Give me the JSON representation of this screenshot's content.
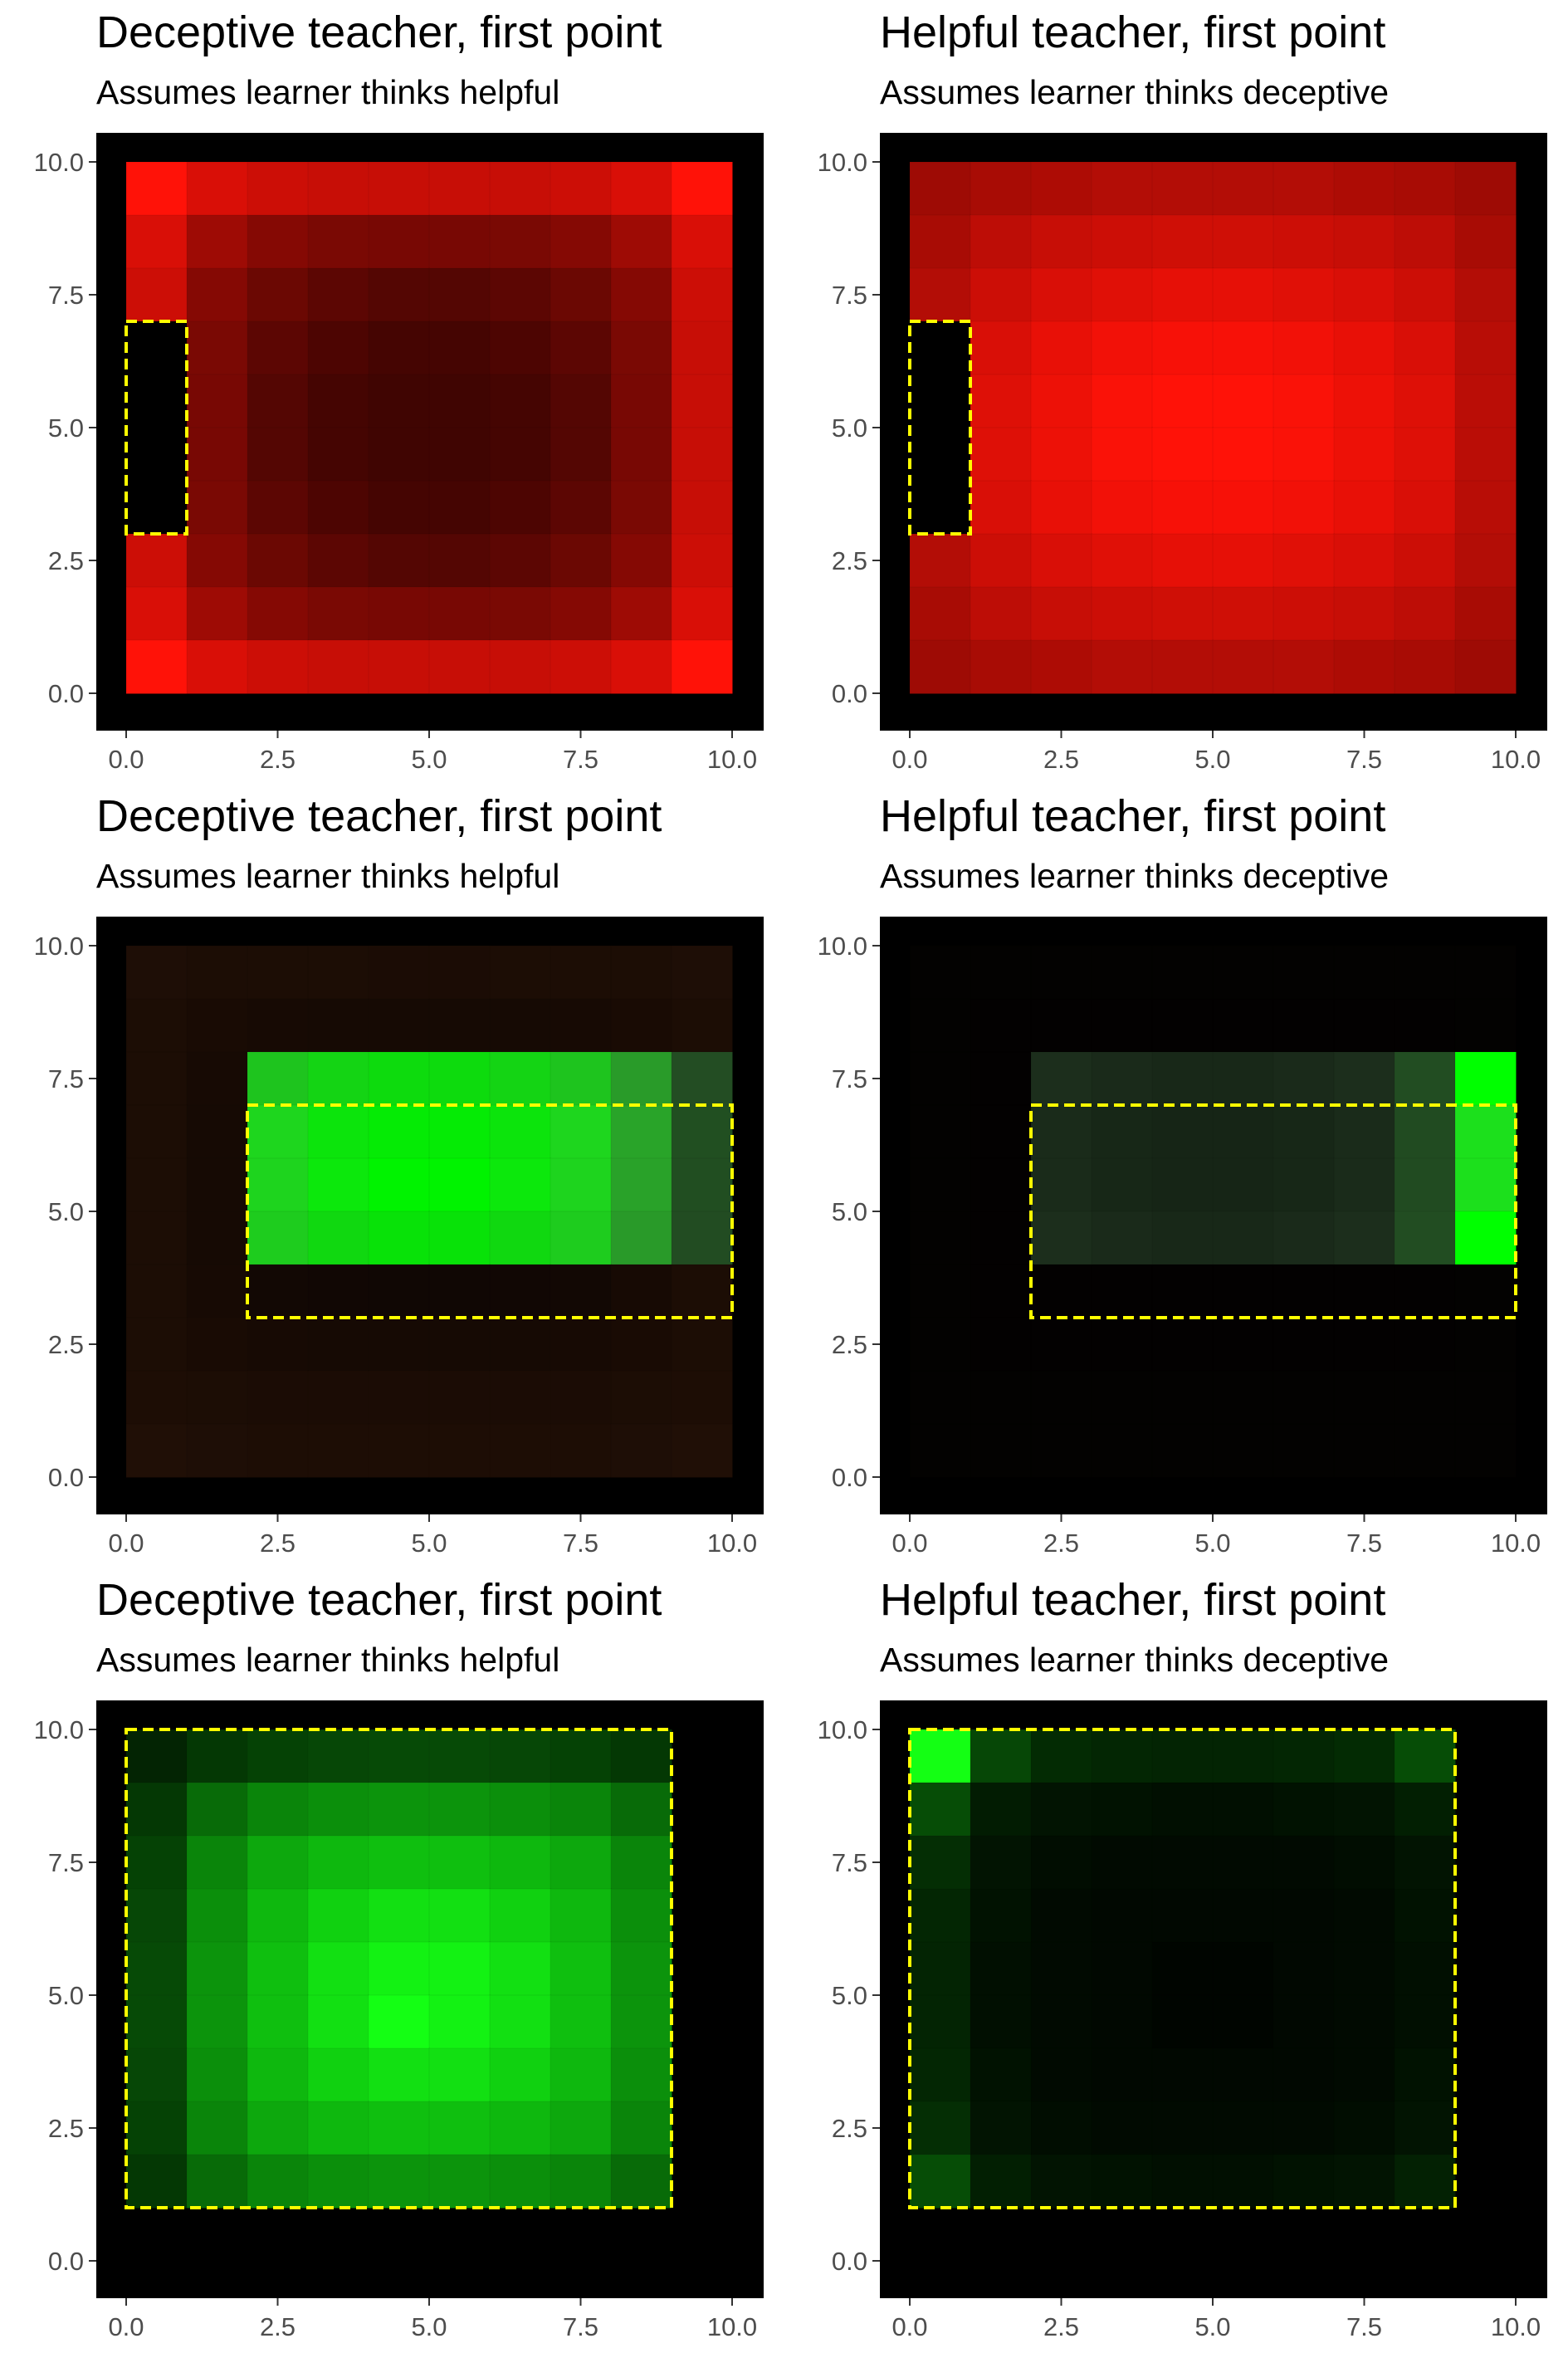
{
  "colors": {
    "background": "#000000",
    "outline": "#ffff00",
    "tick_text": "#4d4d4d",
    "tick_mark": "#333333"
  },
  "chart_data": [
    {
      "type": "heatmap",
      "title": "Deceptive teacher, first point",
      "subtitle": "Assumes learner thinks helpful",
      "xlabel": "",
      "ylabel": "",
      "xlim": [
        0,
        10
      ],
      "ylim": [
        0,
        10
      ],
      "xticks": [
        "0.0",
        "2.5",
        "5.0",
        "7.5",
        "10.0"
      ],
      "yticks": [
        "0.0",
        "2.5",
        "5.0",
        "7.5",
        "10.0"
      ],
      "grid": false,
      "color_channel": "red",
      "cell_size": 1,
      "cells_x": [
        0,
        10
      ],
      "cells_y": [
        0,
        10
      ],
      "intensity_rows_top_to_bottom": [
        [
          1.0,
          0.85,
          0.8,
          0.78,
          0.78,
          0.78,
          0.78,
          0.8,
          0.85,
          1.0
        ],
        [
          0.85,
          0.62,
          0.52,
          0.48,
          0.47,
          0.47,
          0.48,
          0.52,
          0.62,
          0.85
        ],
        [
          0.8,
          0.52,
          0.42,
          0.36,
          0.33,
          0.33,
          0.36,
          0.42,
          0.52,
          0.8
        ],
        [
          0.0,
          0.48,
          0.36,
          0.3,
          0.27,
          0.27,
          0.3,
          0.36,
          0.48,
          0.78
        ],
        [
          0.0,
          0.47,
          0.33,
          0.27,
          0.25,
          0.25,
          0.27,
          0.33,
          0.47,
          0.78
        ],
        [
          0.0,
          0.47,
          0.33,
          0.27,
          0.25,
          0.25,
          0.27,
          0.33,
          0.47,
          0.78
        ],
        [
          0.0,
          0.48,
          0.36,
          0.3,
          0.27,
          0.27,
          0.3,
          0.36,
          0.48,
          0.78
        ],
        [
          0.8,
          0.52,
          0.42,
          0.36,
          0.33,
          0.33,
          0.36,
          0.42,
          0.52,
          0.8
        ],
        [
          0.85,
          0.62,
          0.52,
          0.48,
          0.47,
          0.47,
          0.48,
          0.52,
          0.62,
          0.85
        ],
        [
          1.0,
          0.85,
          0.8,
          0.78,
          0.78,
          0.78,
          0.78,
          0.8,
          0.85,
          1.0
        ]
      ],
      "dashed_rectangle": {
        "x": [
          0,
          1
        ],
        "y": [
          3,
          7
        ]
      }
    },
    {
      "type": "heatmap",
      "title": "Helpful teacher, first point",
      "subtitle": "Assumes learner thinks deceptive",
      "xlabel": "",
      "ylabel": "",
      "xlim": [
        0,
        10
      ],
      "ylim": [
        0,
        10
      ],
      "xticks": [
        "0.0",
        "2.5",
        "5.0",
        "7.5",
        "10.0"
      ],
      "yticks": [
        "0.0",
        "2.5",
        "5.0",
        "7.5",
        "10.0"
      ],
      "grid": false,
      "color_channel": "red",
      "cell_size": 1,
      "cells_x": [
        0,
        10
      ],
      "cells_y": [
        0,
        10
      ],
      "intensity_rows_top_to_bottom": [
        [
          0.62,
          0.66,
          0.68,
          0.7,
          0.7,
          0.7,
          0.7,
          0.68,
          0.66,
          0.62
        ],
        [
          0.66,
          0.74,
          0.78,
          0.8,
          0.81,
          0.81,
          0.8,
          0.78,
          0.74,
          0.66
        ],
        [
          0.7,
          0.8,
          0.85,
          0.88,
          0.9,
          0.9,
          0.88,
          0.85,
          0.8,
          0.7
        ],
        [
          0.0,
          0.85,
          0.91,
          0.95,
          0.97,
          0.97,
          0.95,
          0.91,
          0.85,
          0.72
        ],
        [
          0.0,
          0.87,
          0.93,
          0.98,
          1.0,
          1.0,
          0.98,
          0.93,
          0.87,
          0.73
        ],
        [
          0.0,
          0.87,
          0.93,
          0.98,
          1.0,
          1.0,
          0.98,
          0.93,
          0.87,
          0.73
        ],
        [
          0.0,
          0.85,
          0.91,
          0.95,
          0.97,
          0.97,
          0.95,
          0.91,
          0.85,
          0.72
        ],
        [
          0.7,
          0.8,
          0.85,
          0.88,
          0.9,
          0.9,
          0.88,
          0.85,
          0.8,
          0.7
        ],
        [
          0.66,
          0.74,
          0.78,
          0.8,
          0.81,
          0.81,
          0.8,
          0.78,
          0.74,
          0.66
        ],
        [
          0.62,
          0.66,
          0.68,
          0.7,
          0.7,
          0.7,
          0.7,
          0.68,
          0.66,
          0.62
        ]
      ],
      "dashed_rectangle": {
        "x": [
          0,
          1
        ],
        "y": [
          3,
          7
        ]
      }
    },
    {
      "type": "heatmap",
      "title": "Deceptive teacher, first point",
      "subtitle": "Assumes learner thinks helpful",
      "xlabel": "",
      "ylabel": "",
      "xlim": [
        0,
        10
      ],
      "ylim": [
        0,
        10
      ],
      "xticks": [
        "0.0",
        "2.5",
        "5.0",
        "7.5",
        "10.0"
      ],
      "yticks": [
        "0.0",
        "2.5",
        "5.0",
        "7.5",
        "10.0"
      ],
      "grid": false,
      "color_channel": "mixed",
      "cell_size": 1,
      "cells_x": [
        0,
        10
      ],
      "cells_y": [
        0,
        10
      ],
      "cell_colors_rows_top_to_bottom": [
        [
          "#1e0e06",
          "#1c0d05",
          "#1c0d05",
          "#1c0d05",
          "#1b0c05",
          "#1b0c05",
          "#1c0d05",
          "#1c0d05",
          "#1c0d05",
          "#1e0e06"
        ],
        [
          "#1c0d05",
          "#190b04",
          "#170a04",
          "#160a04",
          "#160a04",
          "#160a04",
          "#160a04",
          "#170a04",
          "#190b04",
          "#1c0d05"
        ],
        [
          "#1c0d05",
          "#170a04",
          "#1ec41e",
          "#14d414",
          "#0ddb0d",
          "#0ddb0d",
          "#14d414",
          "#1ec41e",
          "#299b29",
          "#234d23"
        ],
        [
          "#1c0d05",
          "#160a04",
          "#1ed61e",
          "#0ce40c",
          "#05eb05",
          "#05eb05",
          "#0ce40c",
          "#1ed61e",
          "#29a429",
          "#214f21"
        ],
        [
          "#1c0d05",
          "#160a04",
          "#1ed41e",
          "#0ce80c",
          "#00f300",
          "#00f300",
          "#0ce80c",
          "#1ed41e",
          "#29a229",
          "#214e21"
        ],
        [
          "#1c0d05",
          "#160a04",
          "#1ecc1e",
          "#10d810",
          "#08e208",
          "#08e208",
          "#10d810",
          "#1ecc1e",
          "#299a29",
          "#224c22"
        ],
        [
          "#1c0d05",
          "#170a04",
          "#120804",
          "#110704",
          "#100704",
          "#100704",
          "#110704",
          "#120804",
          "#170a04",
          "#1c0d05"
        ],
        [
          "#1c0d05",
          "#190b04",
          "#170a04",
          "#160a04",
          "#160a04",
          "#160a04",
          "#160a04",
          "#170a04",
          "#190b04",
          "#1c0d05"
        ],
        [
          "#1d0d05",
          "#1c0d05",
          "#1b0c05",
          "#1b0c05",
          "#1b0c05",
          "#1b0c05",
          "#1b0c05",
          "#1b0c05",
          "#1c0d05",
          "#1d0d05"
        ],
        [
          "#200f06",
          "#1e0e06",
          "#1d0d05",
          "#1d0d05",
          "#1d0d05",
          "#1d0d05",
          "#1d0d05",
          "#1d0d05",
          "#1e0e06",
          "#200f06"
        ]
      ],
      "dashed_rectangle": {
        "x": [
          2,
          10
        ],
        "y": [
          3,
          7
        ]
      }
    },
    {
      "type": "heatmap",
      "title": "Helpful teacher, first point",
      "subtitle": "Assumes learner thinks deceptive",
      "xlabel": "",
      "ylabel": "",
      "xlim": [
        0,
        10
      ],
      "ylim": [
        0,
        10
      ],
      "xticks": [
        "0.0",
        "2.5",
        "5.0",
        "7.5",
        "10.0"
      ],
      "yticks": [
        "0.0",
        "2.5",
        "5.0",
        "7.5",
        "10.0"
      ],
      "grid": false,
      "color_channel": "mixed",
      "cell_size": 1,
      "cells_x": [
        0,
        10
      ],
      "cells_y": [
        0,
        10
      ],
      "cell_colors_rows_top_to_bottom": [
        [
          "#030201",
          "#030201",
          "#030201",
          "#030201",
          "#030201",
          "#030201",
          "#030201",
          "#030201",
          "#030201",
          "#030201"
        ],
        [
          "#030201",
          "#030101",
          "#030101",
          "#030101",
          "#030101",
          "#030101",
          "#030101",
          "#030101",
          "#030101",
          "#030201"
        ],
        [
          "#030201",
          "#030101",
          "#1c2e1c",
          "#1a2a1a",
          "#182818",
          "#182818",
          "#1a2a1a",
          "#1c2e1c",
          "#224d22",
          "#00ff00"
        ],
        [
          "#030201",
          "#030101",
          "#1a2b1a",
          "#172717",
          "#162516",
          "#162516",
          "#172717",
          "#1a2b1a",
          "#214b21",
          "#1ce01c"
        ],
        [
          "#030201",
          "#030101",
          "#1a2b1a",
          "#172717",
          "#162516",
          "#162516",
          "#172717",
          "#1a2b1a",
          "#214b21",
          "#1ce01c"
        ],
        [
          "#030201",
          "#030101",
          "#1c2e1c",
          "#1a2a1a",
          "#182818",
          "#182818",
          "#1a2a1a",
          "#1c2e1c",
          "#224d22",
          "#00ff00"
        ],
        [
          "#030201",
          "#030101",
          "#030101",
          "#030101",
          "#030101",
          "#030101",
          "#030101",
          "#030101",
          "#030101",
          "#030201"
        ],
        [
          "#030201",
          "#030101",
          "#030101",
          "#030101",
          "#030101",
          "#030101",
          "#030101",
          "#030101",
          "#030101",
          "#030201"
        ],
        [
          "#030201",
          "#030201",
          "#030201",
          "#030201",
          "#030201",
          "#030201",
          "#030201",
          "#030201",
          "#030201",
          "#030201"
        ],
        [
          "#030201",
          "#030201",
          "#030201",
          "#030201",
          "#030201",
          "#030201",
          "#030201",
          "#030201",
          "#030201",
          "#030201"
        ]
      ],
      "dashed_rectangle": {
        "x": [
          2,
          10
        ],
        "y": [
          3,
          7
        ]
      }
    },
    {
      "type": "heatmap",
      "title": "Deceptive teacher, first point",
      "subtitle": "Assumes learner thinks helpful",
      "xlabel": "",
      "ylabel": "",
      "xlim": [
        0,
        10
      ],
      "ylim": [
        0,
        10
      ],
      "xticks": [
        "0.0",
        "2.5",
        "5.0",
        "7.5",
        "10.0"
      ],
      "yticks": [
        "0.0",
        "2.5",
        "5.0",
        "7.5",
        "10.0"
      ],
      "grid": false,
      "color_channel": "green",
      "cell_size": 1,
      "cells_x": [
        0,
        9
      ],
      "cells_y": [
        1,
        10
      ],
      "intensity_rows_top_to_bottom": [
        [
          0.14,
          0.22,
          0.26,
          0.28,
          0.29,
          0.29,
          0.28,
          0.26,
          0.22
        ],
        [
          0.22,
          0.42,
          0.52,
          0.56,
          0.58,
          0.58,
          0.56,
          0.52,
          0.42
        ],
        [
          0.26,
          0.52,
          0.66,
          0.72,
          0.75,
          0.75,
          0.72,
          0.66,
          0.52
        ],
        [
          0.28,
          0.56,
          0.72,
          0.82,
          0.88,
          0.88,
          0.82,
          0.72,
          0.56
        ],
        [
          0.29,
          0.58,
          0.75,
          0.88,
          0.95,
          0.95,
          0.88,
          0.75,
          0.58
        ],
        [
          0.29,
          0.58,
          0.75,
          0.88,
          1.0,
          0.95,
          0.88,
          0.75,
          0.58
        ],
        [
          0.28,
          0.56,
          0.72,
          0.82,
          0.88,
          0.88,
          0.82,
          0.72,
          0.56
        ],
        [
          0.26,
          0.52,
          0.66,
          0.72,
          0.75,
          0.75,
          0.72,
          0.66,
          0.52
        ],
        [
          0.22,
          0.42,
          0.52,
          0.56,
          0.58,
          0.58,
          0.56,
          0.52,
          0.42
        ]
      ],
      "dashed_rectangle": {
        "x": [
          0,
          9
        ],
        "y": [
          1,
          10
        ]
      }
    },
    {
      "type": "heatmap",
      "title": "Helpful teacher, first point",
      "subtitle": "Assumes learner thinks deceptive",
      "xlabel": "",
      "ylabel": "",
      "xlim": [
        0,
        10
      ],
      "ylim": [
        0,
        10
      ],
      "xticks": [
        "0.0",
        "2.5",
        "5.0",
        "7.5",
        "10.0"
      ],
      "yticks": [
        "0.0",
        "2.5",
        "5.0",
        "7.5",
        "10.0"
      ],
      "grid": false,
      "color_channel": "green",
      "cell_size": 1,
      "cells_x": [
        0,
        9
      ],
      "cells_y": [
        1,
        10
      ],
      "intensity_rows_top_to_bottom": [
        [
          1.0,
          0.28,
          0.17,
          0.15,
          0.14,
          0.14,
          0.15,
          0.17,
          0.3
        ],
        [
          0.3,
          0.11,
          0.08,
          0.07,
          0.06,
          0.06,
          0.07,
          0.08,
          0.12
        ],
        [
          0.18,
          0.08,
          0.05,
          0.04,
          0.04,
          0.04,
          0.04,
          0.05,
          0.08
        ],
        [
          0.15,
          0.07,
          0.04,
          0.03,
          0.03,
          0.03,
          0.03,
          0.04,
          0.07
        ],
        [
          0.14,
          0.06,
          0.04,
          0.03,
          0.02,
          0.02,
          0.03,
          0.04,
          0.06
        ],
        [
          0.14,
          0.06,
          0.04,
          0.03,
          0.02,
          0.02,
          0.03,
          0.04,
          0.06
        ],
        [
          0.15,
          0.07,
          0.04,
          0.03,
          0.03,
          0.03,
          0.03,
          0.04,
          0.07
        ],
        [
          0.18,
          0.08,
          0.05,
          0.04,
          0.04,
          0.04,
          0.04,
          0.05,
          0.08
        ],
        [
          0.3,
          0.12,
          0.08,
          0.07,
          0.06,
          0.06,
          0.07,
          0.08,
          0.13
        ]
      ],
      "dashed_rectangle": {
        "x": [
          0,
          9
        ],
        "y": [
          1,
          10
        ]
      }
    }
  ]
}
